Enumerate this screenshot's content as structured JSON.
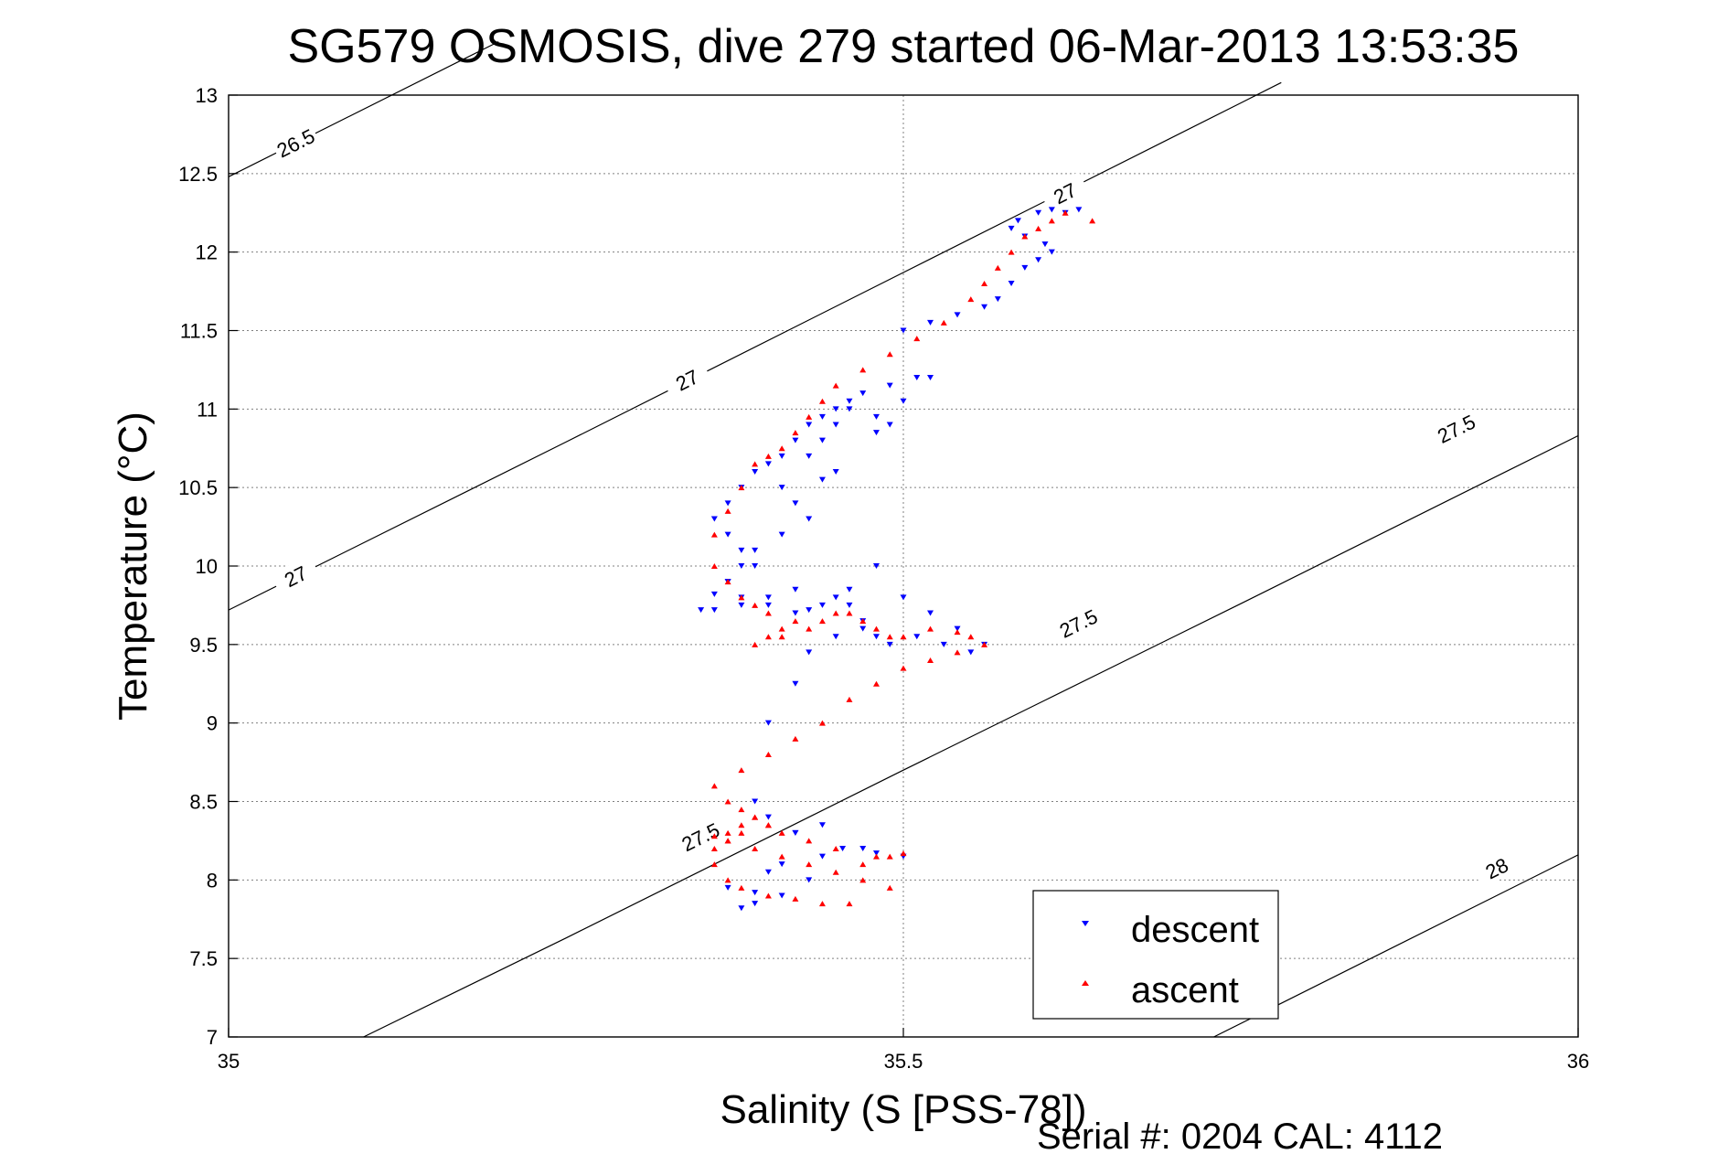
{
  "chart_data": {
    "type": "scatter",
    "title": "SG579 OSMOSIS, dive 279 started 06-Mar-2013 13:53:35",
    "xlabel": "Salinity (S [PSS-78])",
    "ylabel": "Temperature (°C)",
    "xlim": [
      35,
      36
    ],
    "ylim": [
      7,
      13
    ],
    "xticks": [
      "35",
      "35.5",
      "36"
    ],
    "yticks": [
      "7",
      "7.5",
      "8",
      "8.5",
      "9",
      "9.5",
      "10",
      "10.5",
      "11",
      "11.5",
      "12",
      "12.5",
      "13"
    ],
    "grid": true,
    "legend_position": "bottom-right",
    "footer": "Serial #: 0204  CAL: 4112",
    "colors": {
      "descent": "#0000ff",
      "ascent": "#ff0000",
      "isopycnal": "#000000",
      "grid": "#808080"
    },
    "isopycnals": [
      {
        "label": "26.5",
        "points": [
          [
            35.0,
            12.48
          ],
          [
            35.2,
            13.34
          ]
        ],
        "labels_at": [
          [
            35.05,
            12.69
          ]
        ]
      },
      {
        "label": "27",
        "points": [
          [
            35.0,
            9.72
          ],
          [
            35.25,
            10.79
          ],
          [
            35.5,
            11.87
          ],
          [
            35.75,
            12.95
          ],
          [
            35.78,
            13.08
          ]
        ],
        "labels_at": [
          [
            35.05,
            9.93
          ],
          [
            35.34,
            11.18
          ],
          [
            35.62,
            12.37
          ]
        ]
      },
      {
        "label": "27.5",
        "points": [
          [
            35.1,
            7.0
          ],
          [
            35.25,
            7.63
          ],
          [
            35.5,
            8.7
          ],
          [
            35.75,
            9.76
          ],
          [
            36.0,
            10.83
          ]
        ],
        "labels_at": [
          [
            35.35,
            8.27
          ],
          [
            35.63,
            9.63
          ],
          [
            35.91,
            10.87
          ]
        ]
      },
      {
        "label": "28",
        "points": [
          [
            35.73,
            7.0
          ],
          [
            36.0,
            8.16
          ]
        ],
        "labels_at": [
          [
            35.94,
            8.07
          ]
        ]
      }
    ],
    "series": [
      {
        "name": "descent",
        "marker": "triangle-down",
        "x": [
          35.38,
          35.39,
          35.41,
          35.43,
          35.44,
          35.455,
          35.47,
          35.48,
          35.5,
          35.41,
          35.39,
          35.37,
          35.4,
          35.42,
          35.44,
          35.42,
          35.4,
          35.39,
          35.4,
          35.42,
          35.43,
          35.45,
          35.47,
          35.49,
          35.51,
          35.53,
          35.55,
          35.56,
          35.54,
          35.52,
          35.5,
          35.48,
          35.47,
          35.46,
          35.42,
          35.4,
          35.38,
          35.36,
          35.35,
          35.36,
          35.37,
          35.38,
          35.39,
          35.41,
          35.43,
          35.42,
          35.41,
          35.44,
          35.45,
          35.43,
          35.44,
          35.45,
          35.46,
          35.48,
          35.49,
          35.48,
          35.5,
          35.51,
          35.52,
          35.49,
          35.47,
          35.46,
          35.45,
          35.44,
          35.43,
          35.42,
          35.41,
          35.4,
          35.39,
          35.38,
          35.37,
          35.36,
          35.37,
          35.38,
          35.39,
          35.37,
          35.38,
          35.4,
          35.42,
          35.43,
          35.44,
          35.45,
          35.46,
          35.48,
          35.5,
          35.52,
          35.54,
          35.56,
          35.57,
          35.58,
          35.59,
          35.6,
          35.61,
          35.605,
          35.59,
          35.58,
          35.585,
          35.6,
          35.61,
          35.62,
          35.63
        ],
        "y": [
          7.82,
          7.85,
          7.9,
          8.0,
          8.15,
          8.2,
          8.2,
          8.17,
          8.15,
          8.1,
          7.92,
          7.95,
          8.05,
          8.3,
          8.35,
          8.3,
          8.4,
          8.5,
          9.0,
          9.25,
          9.45,
          9.55,
          9.6,
          9.5,
          9.55,
          9.5,
          9.45,
          9.5,
          9.6,
          9.7,
          9.8,
          9.55,
          9.65,
          9.75,
          9.85,
          9.8,
          9.75,
          9.72,
          9.72,
          9.82,
          9.9,
          10.0,
          10.1,
          10.2,
          10.3,
          10.4,
          10.5,
          10.55,
          10.6,
          10.7,
          10.8,
          10.9,
          11.0,
          10.95,
          10.9,
          10.85,
          11.05,
          11.2,
          11.2,
          11.15,
          11.1,
          11.05,
          11.0,
          10.95,
          10.9,
          10.8,
          10.7,
          10.65,
          10.6,
          10.5,
          10.4,
          10.3,
          10.2,
          10.1,
          10.0,
          9.9,
          9.8,
          9.75,
          9.7,
          9.72,
          9.75,
          9.8,
          9.85,
          10.0,
          11.5,
          11.55,
          11.6,
          11.65,
          11.7,
          11.8,
          11.9,
          11.95,
          12.0,
          12.05,
          12.1,
          12.15,
          12.2,
          12.25,
          12.27,
          12.25,
          12.27
        ]
      },
      {
        "name": "ascent",
        "marker": "triangle-up",
        "x": [
          35.64,
          35.62,
          35.61,
          35.6,
          35.59,
          35.58,
          35.57,
          35.56,
          35.55,
          35.53,
          35.51,
          35.49,
          35.47,
          35.45,
          35.44,
          35.43,
          35.42,
          35.41,
          35.4,
          35.39,
          35.38,
          35.37,
          35.36,
          35.36,
          35.37,
          35.38,
          35.39,
          35.4,
          35.42,
          35.41,
          35.4,
          35.39,
          35.41,
          35.43,
          35.44,
          35.45,
          35.46,
          35.47,
          35.48,
          35.49,
          35.5,
          35.52,
          35.54,
          35.55,
          35.56,
          35.54,
          35.52,
          35.5,
          35.48,
          35.46,
          35.44,
          35.42,
          35.4,
          35.38,
          35.36,
          35.37,
          35.38,
          35.39,
          35.4,
          35.38,
          35.37,
          35.36,
          35.36,
          35.37,
          35.38,
          35.4,
          35.42,
          35.44,
          35.46,
          35.48,
          35.5,
          35.49,
          35.47,
          35.45,
          35.43,
          35.41,
          35.4,
          35.39,
          35.38,
          35.37,
          35.36,
          35.37,
          35.39,
          35.41,
          35.43,
          35.45,
          35.47,
          35.49
        ],
        "y": [
          12.2,
          12.25,
          12.2,
          12.15,
          12.1,
          12.0,
          11.9,
          11.8,
          11.7,
          11.55,
          11.45,
          11.35,
          11.25,
          11.15,
          11.05,
          10.95,
          10.85,
          10.75,
          10.7,
          10.65,
          10.5,
          10.35,
          10.2,
          10.0,
          9.9,
          9.8,
          9.75,
          9.7,
          9.65,
          9.6,
          9.55,
          9.5,
          9.55,
          9.6,
          9.65,
          9.7,
          9.7,
          9.65,
          9.6,
          9.55,
          9.55,
          9.6,
          9.58,
          9.55,
          9.5,
          9.45,
          9.4,
          9.35,
          9.25,
          9.15,
          9.0,
          8.9,
          8.8,
          8.7,
          8.6,
          8.5,
          8.45,
          8.4,
          8.35,
          8.3,
          8.25,
          8.2,
          8.1,
          8.0,
          7.95,
          7.9,
          7.88,
          7.85,
          7.85,
          8.15,
          8.17,
          8.15,
          8.1,
          8.2,
          8.25,
          8.3,
          8.35,
          8.4,
          8.35,
          8.3,
          8.28,
          8.25,
          8.2,
          8.15,
          8.1,
          8.05,
          8.0,
          7.95
        ]
      }
    ]
  }
}
